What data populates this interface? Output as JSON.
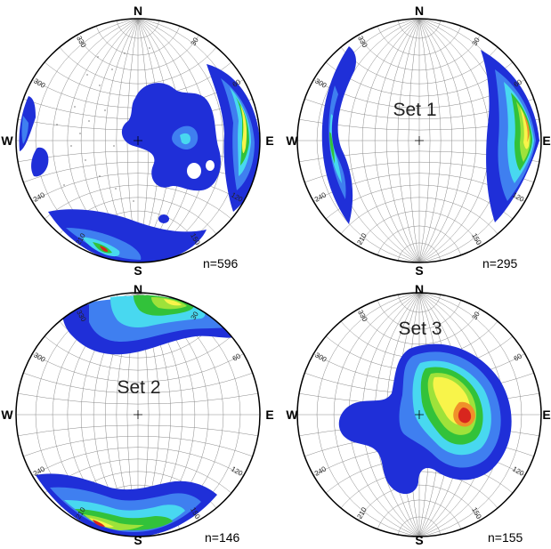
{
  "panels": [
    {
      "set_label": "",
      "count": "n=596",
      "directions": {
        "n": "N",
        "e": "E",
        "s": "S",
        "w": "W"
      },
      "ticks": [
        "30",
        "60",
        "90",
        "120",
        "150",
        "180",
        "210",
        "240",
        "270",
        "300",
        "330",
        "360"
      ]
    },
    {
      "set_label": "Set 1",
      "count": "n=295",
      "directions": {
        "n": "N",
        "e": "E",
        "s": "S",
        "w": "W"
      },
      "ticks": [
        "30",
        "60",
        "90",
        "120",
        "150",
        "180",
        "210",
        "240",
        "270",
        "300",
        "330",
        "360"
      ]
    },
    {
      "set_label": "Set 2",
      "count": "n=146",
      "directions": {
        "n": "N",
        "e": "E",
        "s": "S",
        "w": "W"
      },
      "ticks": [
        "30",
        "60",
        "90",
        "120",
        "150",
        "180",
        "210",
        "240",
        "270",
        "300",
        "330",
        "360"
      ]
    },
    {
      "set_label": "Set 3",
      "count": "n=155",
      "directions": {
        "n": "N",
        "e": "E",
        "s": "S",
        "w": "W"
      },
      "ticks": [
        "30",
        "60",
        "90",
        "120",
        "150",
        "180",
        "210",
        "240",
        "270",
        "300",
        "330",
        "360"
      ]
    }
  ],
  "colors": {
    "blue": "#1f2fd8",
    "mid_blue": "#3f7ff0",
    "cyan": "#48d8f0",
    "green": "#32c23a",
    "light_green": "#9ee23a",
    "yellow": "#f8f44a",
    "orange": "#f0902a",
    "red": "#d8261e",
    "net_line": "#8a8a8a"
  }
}
